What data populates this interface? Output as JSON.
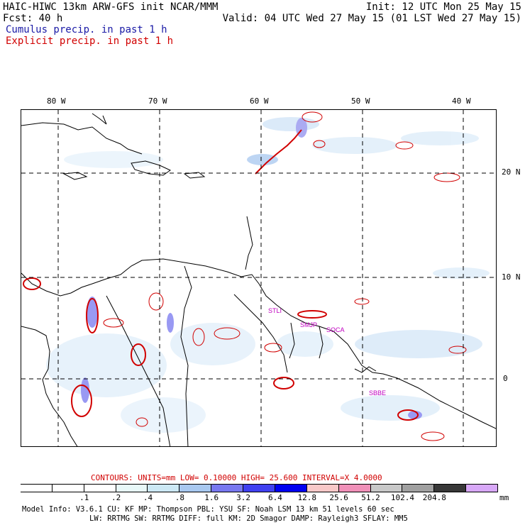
{
  "header": {
    "model_line": "HAIC-HIWC 13km ARW-GFS init    NCAR/MMM",
    "fcst_line": "Fcst:   40 h",
    "init_line": "Init: 12 UTC Mon 25 May 15",
    "valid_line": "Valid: 04 UTC Wed 27 May 15 (01 LST Wed 27 May 15)",
    "cumulus_label": "Cumulus precip. in past 1 h",
    "explicit_label": "Explicit precip. in past 1 h"
  },
  "map": {
    "lon_labels": [
      "80 W",
      "70 W",
      "60 W",
      "50 W",
      "40 W"
    ],
    "lat_labels": [
      "20 N",
      "10 N",
      "0"
    ],
    "stations": [
      "STLI",
      "SMJP",
      "SOCA",
      "SBBE"
    ]
  },
  "contours": {
    "label": "CONTOURS:  UNITS=mm  LOW= 0.10000      HIGH=  25.600      INTERVAL=X  4.0000"
  },
  "colorbar": {
    "unit": "mm",
    "levels": [
      ".1",
      ".2",
      ".4",
      ".8",
      "1.6",
      "3.2",
      "6.4",
      "12.8",
      "25.6",
      "51.2",
      "102.4",
      "204.8"
    ],
    "colors": [
      "#ffffff",
      "#ffffff",
      "#ffffff",
      "#e8f8f8",
      "#cce8f4",
      "#a8c8f0",
      "#7878f0",
      "#4040f0",
      "#0000f0",
      "#f8c8c8",
      "#f090b8",
      "#c8c8c8",
      "#a0a0a0",
      "#383838",
      "#d8a8f8"
    ]
  },
  "footer": {
    "line1": "Model Info: V3.6.1    CU: KF     MP: Thompson   PBL: YSU     SF: Noah LSM     13 km   51 levels   60 sec",
    "line2": "LW: RRTMG   SW: RRTMG  DIFF: full   KM: 2D Smagor DAMP: Rayleigh3  SFLAY: MM5"
  }
}
